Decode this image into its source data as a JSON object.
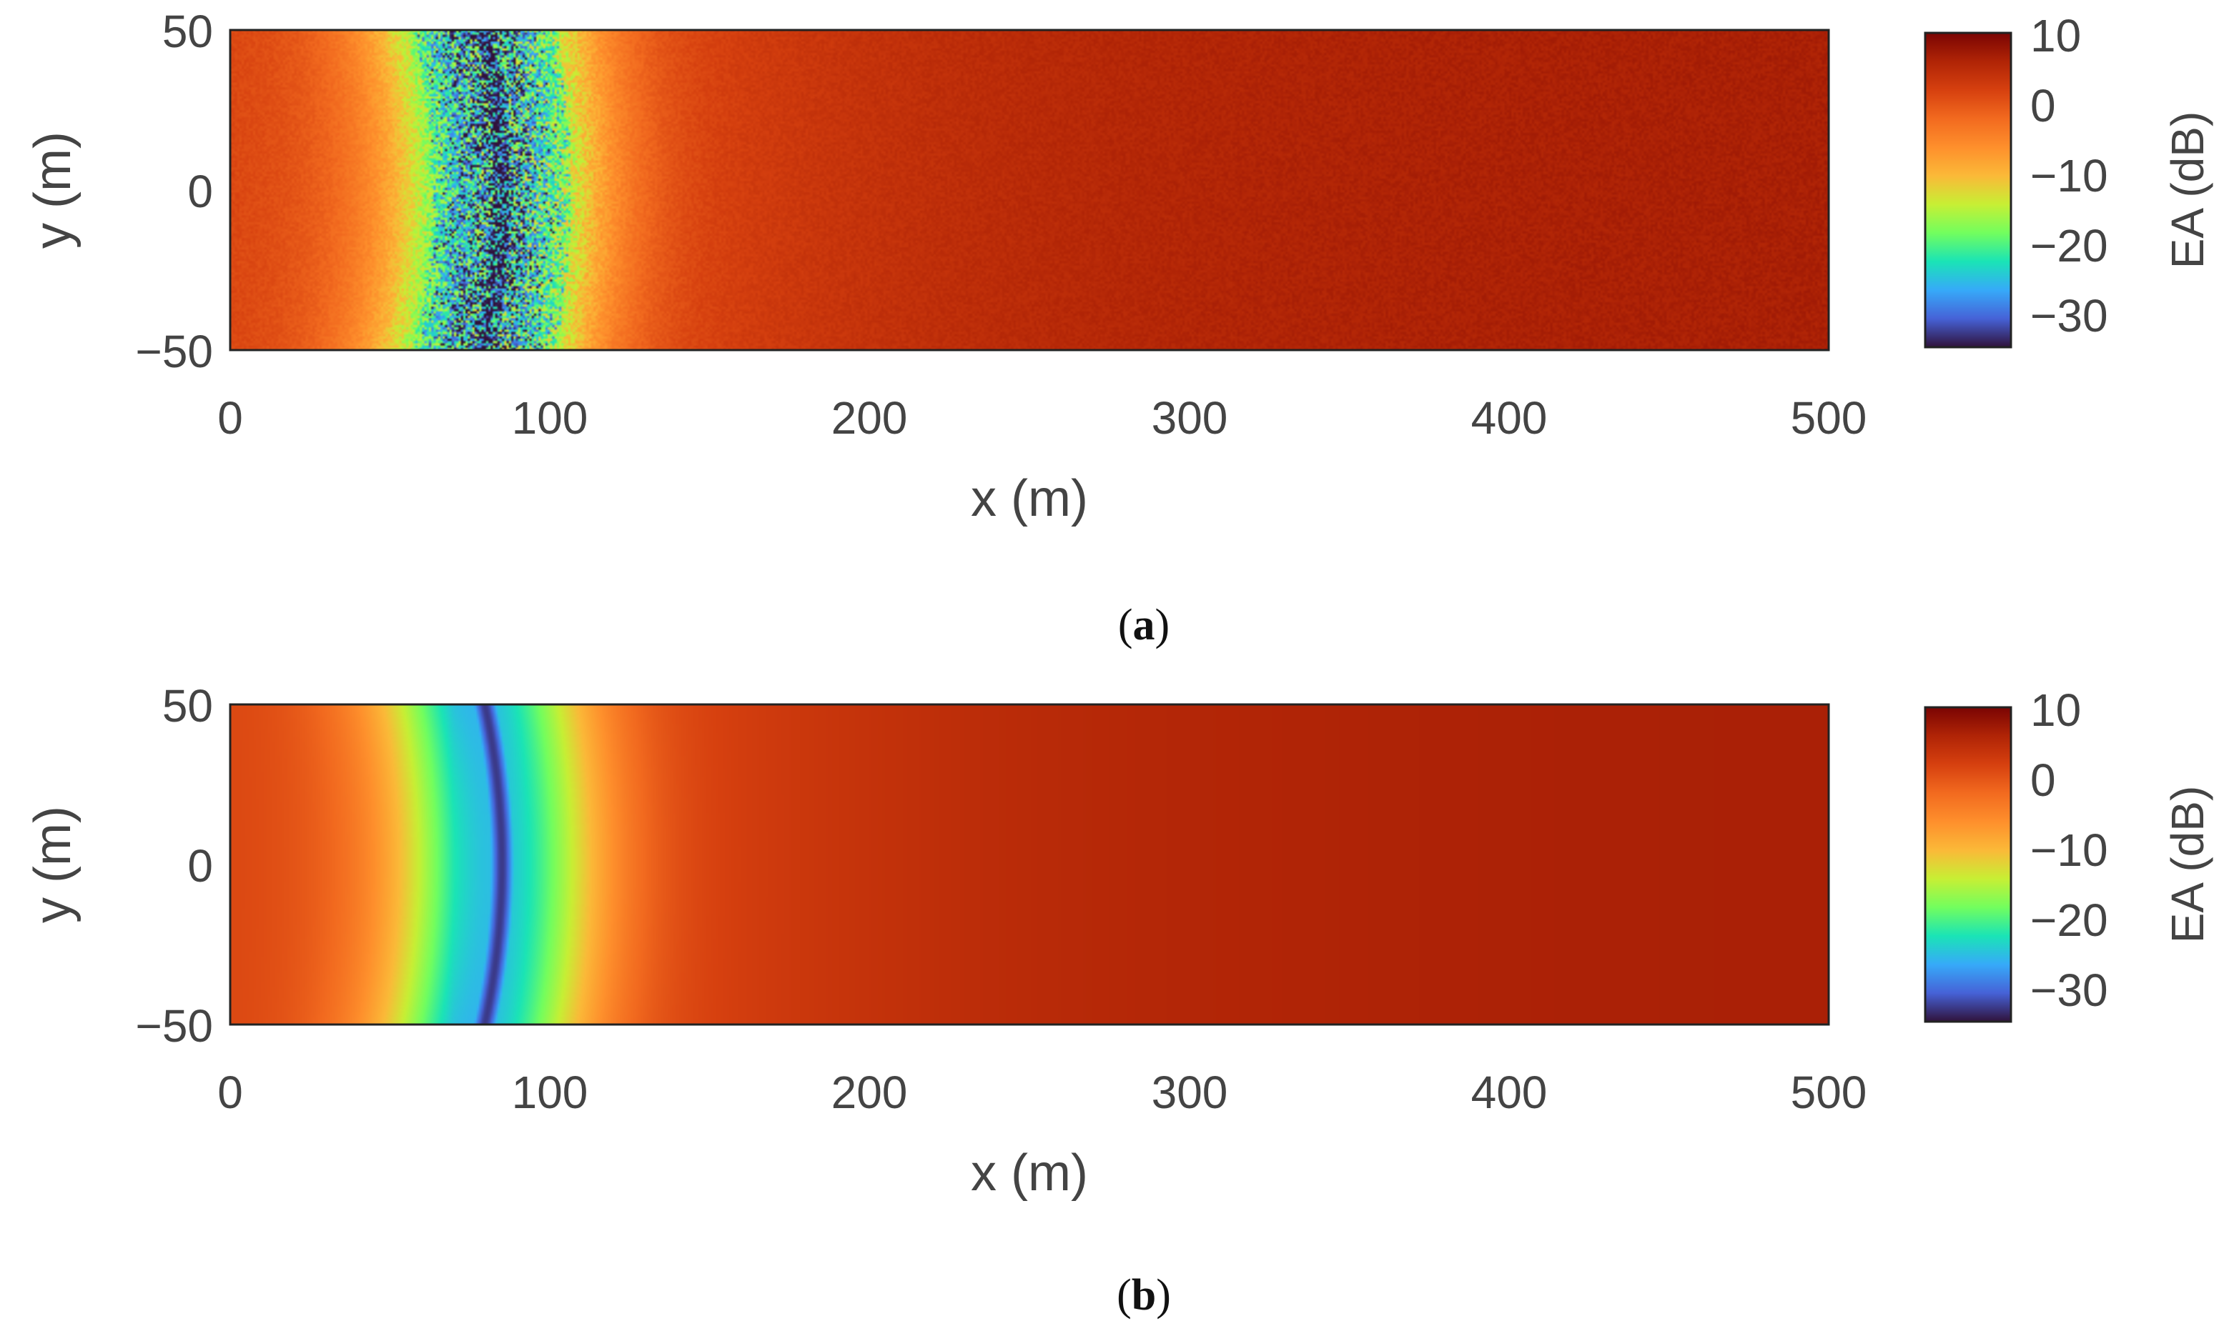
{
  "chart_data": [
    {
      "type": "heatmap",
      "panel": "a",
      "caption_label": "a",
      "xlabel": "x (m)",
      "ylabel": "y (m)",
      "xlim": [
        0,
        500
      ],
      "ylim": [
        -50,
        50
      ],
      "xticks": [
        "0",
        "100",
        "200",
        "300",
        "400",
        "500"
      ],
      "yticks": [
        "50",
        "0",
        "−50"
      ],
      "colorbar": {
        "label": "EA (dB)",
        "range": [
          -35,
          10
        ],
        "ticks": [
          "10",
          "0",
          "−10",
          "−20",
          "−30"
        ]
      },
      "field": {
        "description_values": "EA in dB over x-y plane",
        "min_ring_center_x": -150,
        "min_ring_center_y": 0,
        "min_ring_radius": 235,
        "min_value_db": -33,
        "value_at_origin_db": 1,
        "value_at_x500_db": 6.5,
        "noisy": true
      }
    },
    {
      "type": "heatmap",
      "panel": "b",
      "caption_label": "b",
      "xlabel": "x (m)",
      "ylabel": "y (m)",
      "xlim": [
        0,
        500
      ],
      "ylim": [
        -50,
        50
      ],
      "xticks": [
        "0",
        "100",
        "200",
        "300",
        "400",
        "500"
      ],
      "yticks": [
        "50",
        "0",
        "−50"
      ],
      "colorbar": {
        "label": "EA (dB)",
        "range": [
          -35,
          10
        ],
        "ticks": [
          "10",
          "0",
          "−10",
          "−20",
          "−30"
        ]
      },
      "field": {
        "description_values": "EA in dB over x-y plane",
        "min_ring_center_x": -150,
        "min_ring_center_y": 0,
        "min_ring_radius": 235,
        "min_value_db": -33,
        "value_at_origin_db": 1,
        "value_at_x500_db": 6.5,
        "noisy": false
      }
    }
  ],
  "colormap": [
    "#30123b",
    "#4662d7",
    "#36aaf9",
    "#1ae4b6",
    "#72fe5e",
    "#c7ef34",
    "#fbb938",
    "#fe8f2c",
    "#f26a1f",
    "#d6400f",
    "#b02406",
    "#7a0403"
  ]
}
